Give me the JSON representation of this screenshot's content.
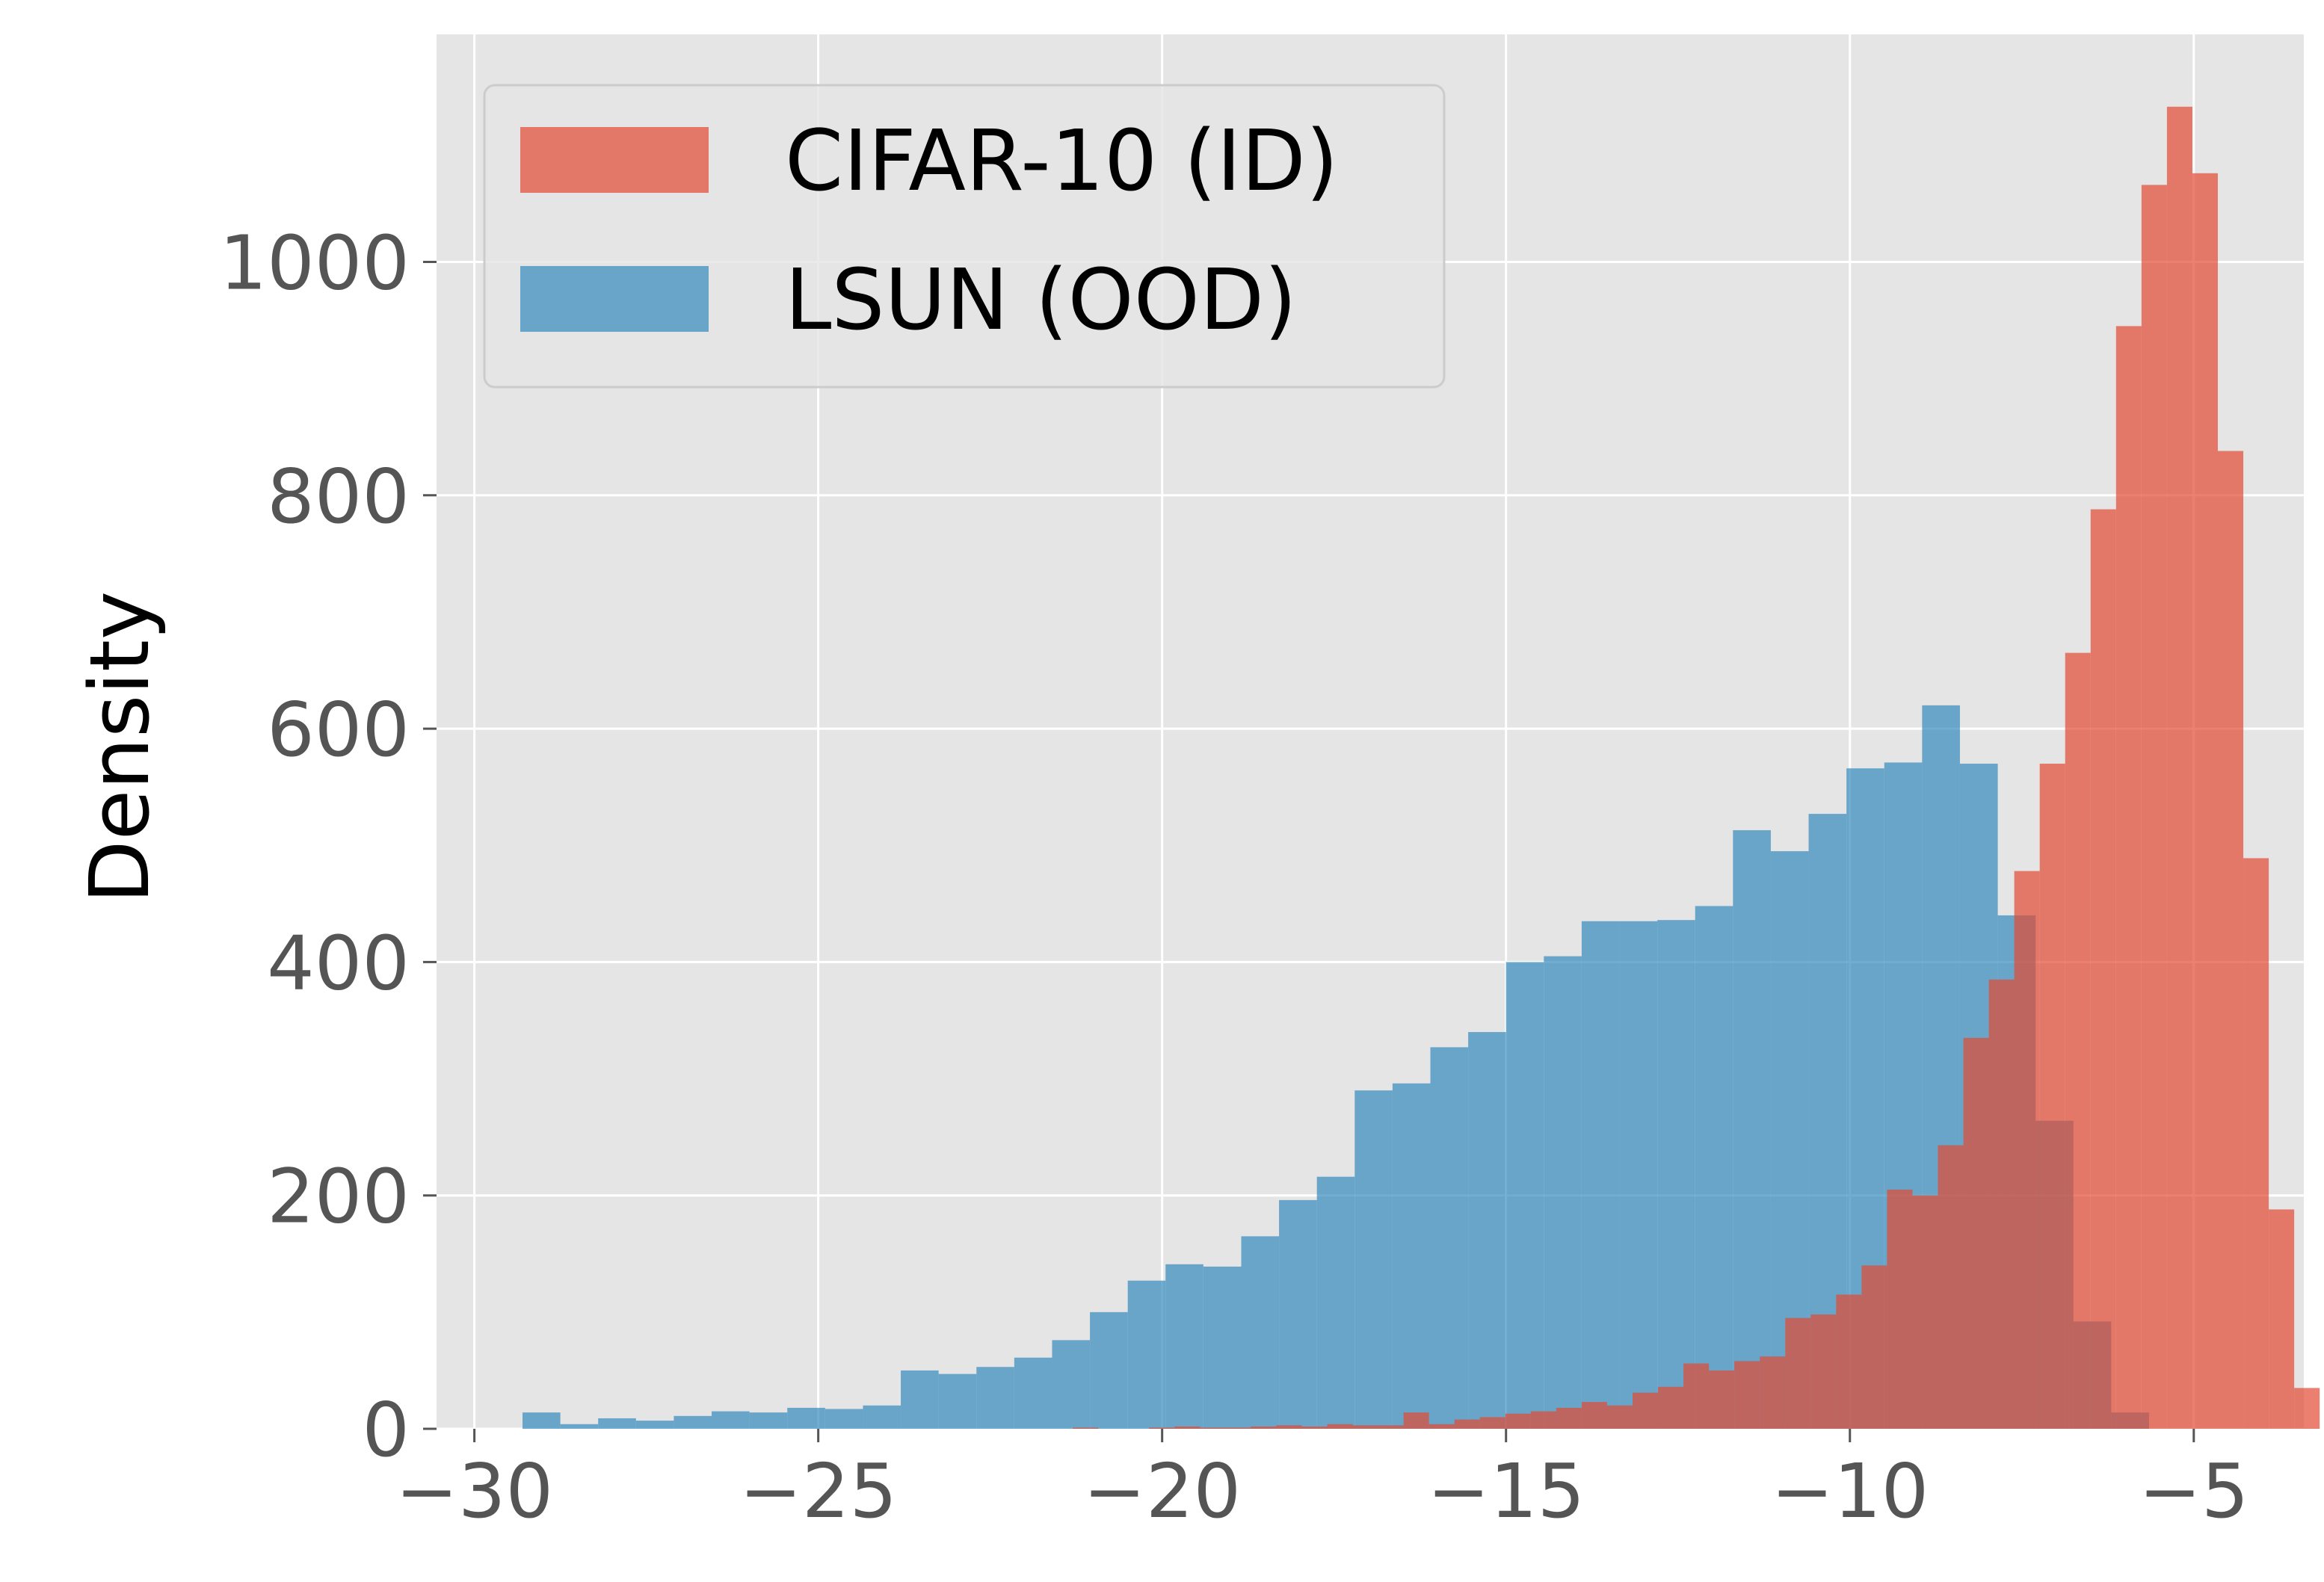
{
  "chart_data": {
    "type": "histogram",
    "title": "",
    "xlabel": "",
    "ylabel": "Density",
    "xlim": [
      -30.55,
      -3.4
    ],
    "ylim": [
      0,
      1195
    ],
    "grid": true,
    "legend_position": "upper-left",
    "x_ticks": [
      {
        "value": -30,
        "label": "−30"
      },
      {
        "value": -25,
        "label": "−25"
      },
      {
        "value": -20,
        "label": "−20"
      },
      {
        "value": -15,
        "label": "−15"
      },
      {
        "value": -10,
        "label": "−10"
      },
      {
        "value": -5,
        "label": "−5"
      }
    ],
    "y_ticks": [
      {
        "value": 0,
        "label": "0"
      },
      {
        "value": 200,
        "label": "200"
      },
      {
        "value": 400,
        "label": "400"
      },
      {
        "value": 600,
        "label": "600"
      },
      {
        "value": 800,
        "label": "800"
      },
      {
        "value": 1000,
        "label": "1000"
      }
    ],
    "series": [
      {
        "name": "LSUN (OOD)",
        "color": "#348abd",
        "opacity": 0.7,
        "bin_start": -29.3,
        "bin_width": 0.55,
        "values": [
          14,
          4,
          9,
          7,
          11,
          15,
          14,
          18,
          17,
          20,
          50,
          47,
          53,
          61,
          76,
          100,
          127,
          141,
          139,
          165,
          196,
          216,
          290,
          296,
          327,
          340,
          400,
          405,
          435,
          435,
          436,
          448,
          513,
          495,
          527,
          566,
          571,
          620,
          570,
          440,
          264,
          92,
          14
        ]
      },
      {
        "name": "CIFAR-10 (ID)",
        "color": "#e24a33",
        "opacity": 0.7,
        "bin_start": -21.3,
        "bin_width": 0.37,
        "values": [
          1,
          0,
          0,
          1,
          2,
          1,
          1,
          2,
          3,
          2,
          4,
          3,
          3,
          14,
          4,
          8,
          10,
          13,
          15,
          18,
          23,
          20,
          31,
          36,
          56,
          50,
          58,
          62,
          95,
          98,
          115,
          140,
          205,
          200,
          243,
          335,
          385,
          478,
          570,
          665,
          788,
          945,
          1066,
          1133,
          1076,
          838,
          489,
          188,
          35
        ]
      }
    ]
  }
}
